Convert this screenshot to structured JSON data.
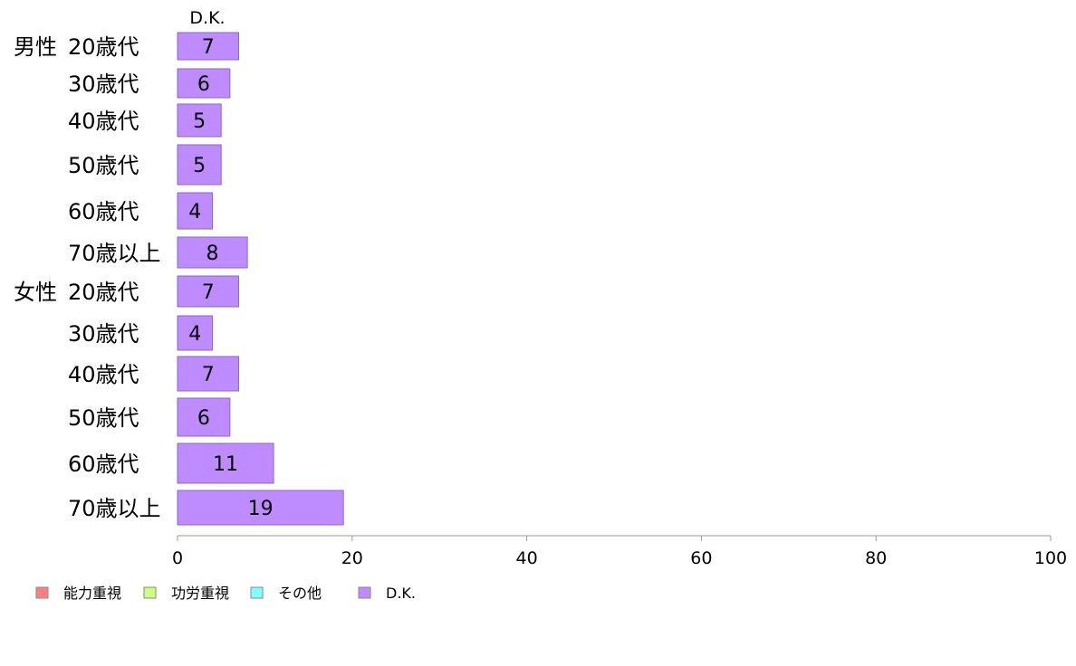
{
  "chart_data": {
    "type": "bar",
    "orientation": "horizontal",
    "stacked": true,
    "series_header": "D.K.",
    "groups": [
      {
        "label": "男性",
        "start_index": 0
      },
      {
        "label": "女性",
        "start_index": 6
      }
    ],
    "categories": [
      "20歳代",
      "30歳代",
      "40歳代",
      "50歳代",
      "60歳代",
      "70歳以上",
      "20歳代",
      "30歳代",
      "40歳代",
      "50歳代",
      "60歳代",
      "70歳以上"
    ],
    "series": [
      {
        "name": "能力重視",
        "color": "#ff8080",
        "values": [
          0,
          0,
          0,
          0,
          0,
          0,
          0,
          0,
          0,
          0,
          0,
          0
        ]
      },
      {
        "name": "功労重視",
        "color": "#ccff80",
        "values": [
          0,
          0,
          0,
          0,
          0,
          0,
          0,
          0,
          0,
          0,
          0,
          0
        ]
      },
      {
        "name": "その他",
        "color": "#80ffff",
        "values": [
          0,
          0,
          0,
          0,
          0,
          0,
          0,
          0,
          0,
          0,
          0,
          0
        ]
      },
      {
        "name": "D.K.",
        "color": "#bf8cff",
        "values": [
          7,
          6,
          5,
          5,
          4,
          8,
          7,
          4,
          7,
          6,
          11,
          19
        ]
      }
    ],
    "xlim": [
      0,
      100
    ],
    "x_ticks": [
      0,
      20,
      40,
      60,
      80,
      100
    ],
    "grid": false,
    "legend_position": "bottom-left",
    "bar_stroke_color": "#8866cc",
    "axis_color": "#999999"
  }
}
